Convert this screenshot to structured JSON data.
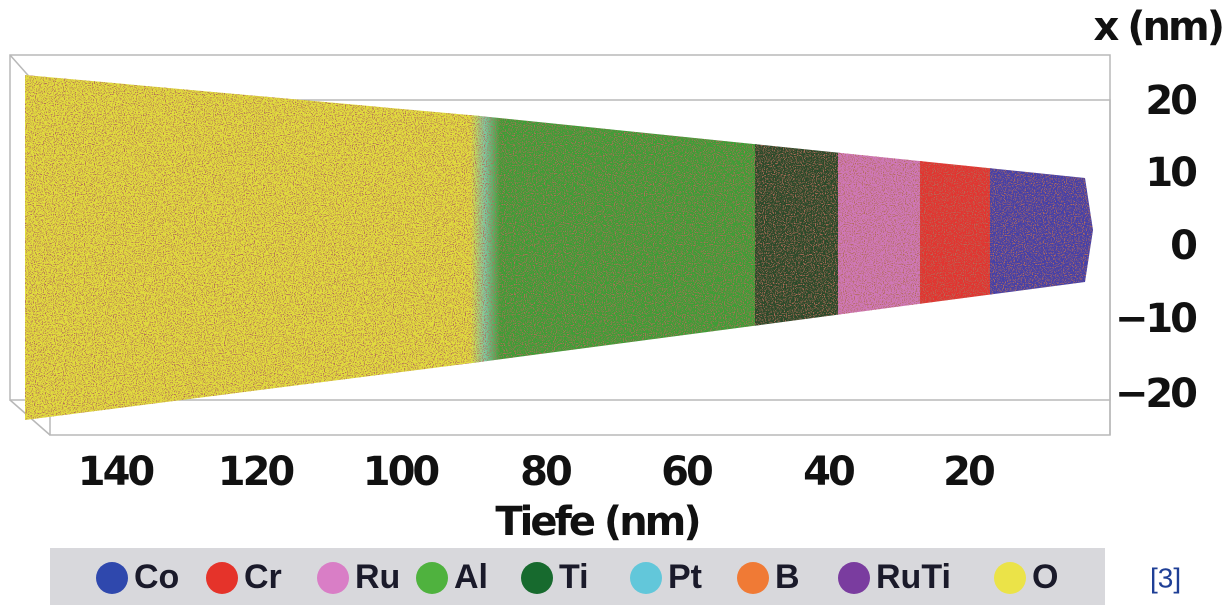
{
  "figure": {
    "y_axis": {
      "label": "x (nm)",
      "ticks": [
        "20",
        "10",
        "0",
        "−10",
        "−20"
      ]
    },
    "x_axis": {
      "label": "Tiefe (nm)",
      "ticks": [
        "140",
        "120",
        "100",
        "80",
        "60",
        "40",
        "20"
      ]
    },
    "legend": [
      {
        "label": "Co",
        "color": "#2f48ad"
      },
      {
        "label": "Cr",
        "color": "#e5332a"
      },
      {
        "label": "Ru",
        "color": "#d97ec6"
      },
      {
        "label": "Al",
        "color": "#4fb23e"
      },
      {
        "label": "Ti",
        "color": "#176a2e"
      },
      {
        "label": "Pt",
        "color": "#62c7da"
      },
      {
        "label": "B",
        "color": "#f07a35"
      },
      {
        "label": "RuTi",
        "color": "#7a3c9f"
      },
      {
        "label": "O",
        "color": "#ebe348"
      }
    ],
    "citation": "[3]"
  }
}
